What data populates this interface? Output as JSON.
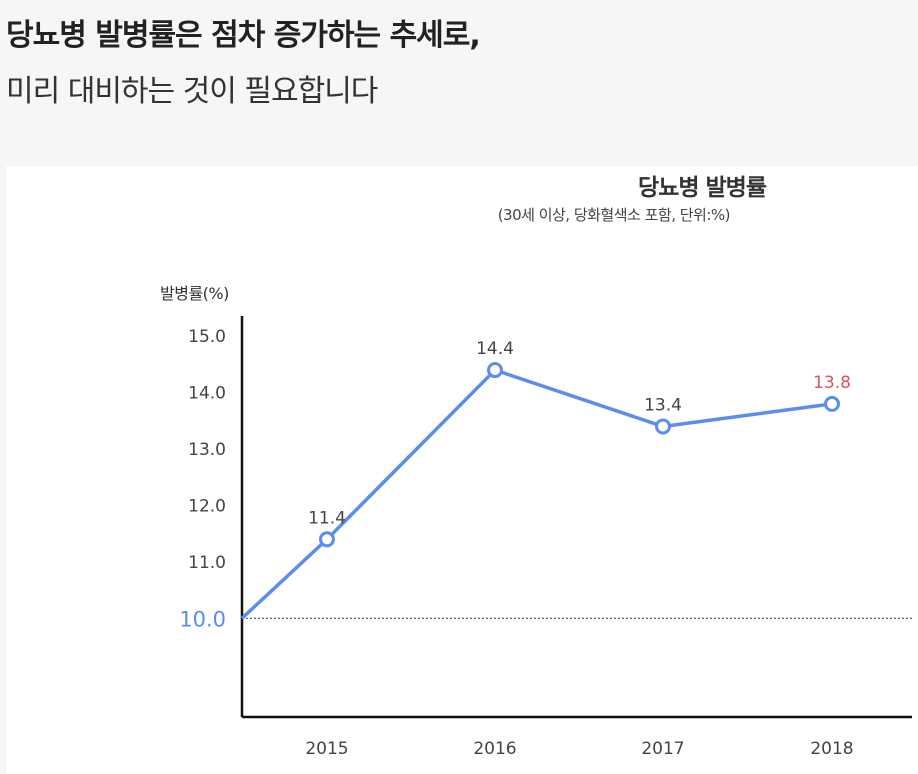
{
  "header": {
    "headline": "당뇨병 발병률은 점차 증가하는 추세로,",
    "subline": "미리 대비하는 것이 필요합니다"
  },
  "chart_data": {
    "type": "line",
    "title": "당뇨병 발병률",
    "subtitle": "(30세 이상, 당화혈색소 포함, 단위:%)",
    "ylabel": "발병률(%)",
    "xlabel": "",
    "categories": [
      "2015",
      "2016",
      "2017",
      "2018"
    ],
    "values": [
      11.4,
      14.4,
      13.4,
      13.8
    ],
    "value_labels": [
      "11.4",
      "14.4",
      "13.4",
      "13.8"
    ],
    "start_value": 10.0,
    "baseline_label": "10.0",
    "y_ticks": [
      "15.0",
      "14.0",
      "13.0",
      "12.0",
      "11.0"
    ],
    "y_tick_values": [
      15.0,
      14.0,
      13.0,
      12.0,
      11.0
    ],
    "ylim": [
      8.25,
      15.5
    ],
    "line_color": "#5b8def",
    "highlight_color": "#e0525a",
    "baseline_color": "#5b8def",
    "highlight_index": 3
  }
}
